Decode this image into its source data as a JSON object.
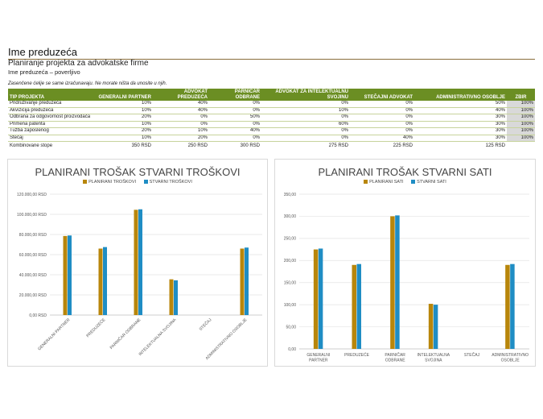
{
  "header": {
    "company_name": "Ime preduzeća",
    "subtitle": "Planiranje projekta za advokatske firme",
    "confidential": "Ime preduzeća – poverljivo",
    "note": "Zasenčene ćelije se same izračunavaju. Ne morate ništa da unosite u njih."
  },
  "table": {
    "headers": [
      "TIP PROJEKTA",
      "GENERALNI PARTNER",
      "ADVOKAT PREDUZEĆA",
      "PARNIČAR ODBRANE",
      "ADVOKAT ZA INTELEKTUALNU SVOJINU",
      "STEČAJNI ADVOKAT",
      "ADMINISTRATIVNO OSOBLJE",
      "ZBIR"
    ],
    "rows": [
      {
        "project": "Pridruživanje preduzeća",
        "gp": "10%",
        "ap": "40%",
        "po": "0%",
        "ais": "0%",
        "sa": "0%",
        "ao": "50%",
        "sum": "100%"
      },
      {
        "project": "Akvizicija preduzeća",
        "gp": "10%",
        "ap": "40%",
        "po": "0%",
        "ais": "10%",
        "sa": "0%",
        "ao": "40%",
        "sum": "100%"
      },
      {
        "project": "Odbrana za odgovornost proizvođača",
        "gp": "20%",
        "ap": "0%",
        "po": "50%",
        "ais": "0%",
        "sa": "0%",
        "ao": "30%",
        "sum": "100%"
      },
      {
        "project": "Primena patenta",
        "gp": "10%",
        "ap": "0%",
        "po": "0%",
        "ais": "60%",
        "sa": "0%",
        "ao": "30%",
        "sum": "100%"
      },
      {
        "project": "Tužba zaposlenog",
        "gp": "20%",
        "ap": "10%",
        "po": "40%",
        "ais": "0%",
        "sa": "0%",
        "ao": "30%",
        "sum": "100%"
      },
      {
        "project": "Stečaj",
        "gp": "10%",
        "ap": "20%",
        "po": "0%",
        "ais": "0%",
        "sa": "40%",
        "ao": "30%",
        "sum": "100%"
      }
    ],
    "rates": {
      "label": "Kombinovane stope",
      "gp": "350 RSD",
      "ap": "250 RSD",
      "po": "300 RSD",
      "ais": "275 RSD",
      "sa": "225 RSD",
      "ao": "125 RSD"
    }
  },
  "colors": {
    "planned": "#b8860b",
    "actual": "#1f8dc4"
  },
  "charts": {
    "cost": {
      "title": "PLANIRANI TROŠAK STVARNI TROŠKOVI",
      "legend_planned": "PLANIRANI TROŠKOVI",
      "legend_actual": "STVARNI TROŠKOVI"
    },
    "hours": {
      "title": "PLANIRANI TROŠAK STVARNI SATI",
      "legend_planned": "PLANIRANI SATI",
      "legend_actual": "STVARNI SATI"
    }
  },
  "chart_data": [
    {
      "type": "bar",
      "title": "PLANIRANI TROŠAK STVARNI TROŠKOVI",
      "categories": [
        "GENERALNI PARTNER",
        "PREDUZEĆE",
        "PARNIČAR ODBRANE",
        "INTELEKTUALNA SVOJINA",
        "STEČAJ",
        "ADMINISTRATIVNO OSOBLJE"
      ],
      "series": [
        {
          "name": "PLANIRANI TROŠKOVI",
          "values": [
            78500,
            66000,
            104500,
            35500,
            0,
            66000
          ]
        },
        {
          "name": "STVARNI TROŠKOVI",
          "values": [
            79000,
            67500,
            105000,
            34500,
            0,
            67000
          ]
        }
      ],
      "yticks": [
        "0,00 RSD",
        "20.000,00 RSD",
        "40.000,00 RSD",
        "60.000,00 RSD",
        "80.000,00 RSD",
        "100.000,00 RSD",
        "120.000,00 RSD"
      ],
      "ylim": [
        0,
        120000
      ],
      "grid": true,
      "legend": "top"
    },
    {
      "type": "bar",
      "title": "PLANIRANI TROŠAK STVARNI SATI",
      "categories": [
        "GENERALNI PARTNER",
        "PREDUZEĆE",
        "PARNIČAR ODBRANE",
        "INTELEKTUALNA SVOJINA",
        "STEČAJ",
        "ADMINISTRATIVNO OSOBLJE"
      ],
      "series": [
        {
          "name": "PLANIRANI SATI",
          "values": [
            225,
            190,
            300,
            102,
            0,
            190
          ]
        },
        {
          "name": "STVARNI SATI",
          "values": [
            227,
            192,
            302,
            100,
            0,
            192
          ]
        }
      ],
      "yticks": [
        "0,00",
        "50,00",
        "100,00",
        "150,00",
        "200,00",
        "250,00",
        "300,00",
        "350,00"
      ],
      "ylim": [
        0,
        350
      ],
      "grid": true,
      "legend": "top"
    }
  ]
}
